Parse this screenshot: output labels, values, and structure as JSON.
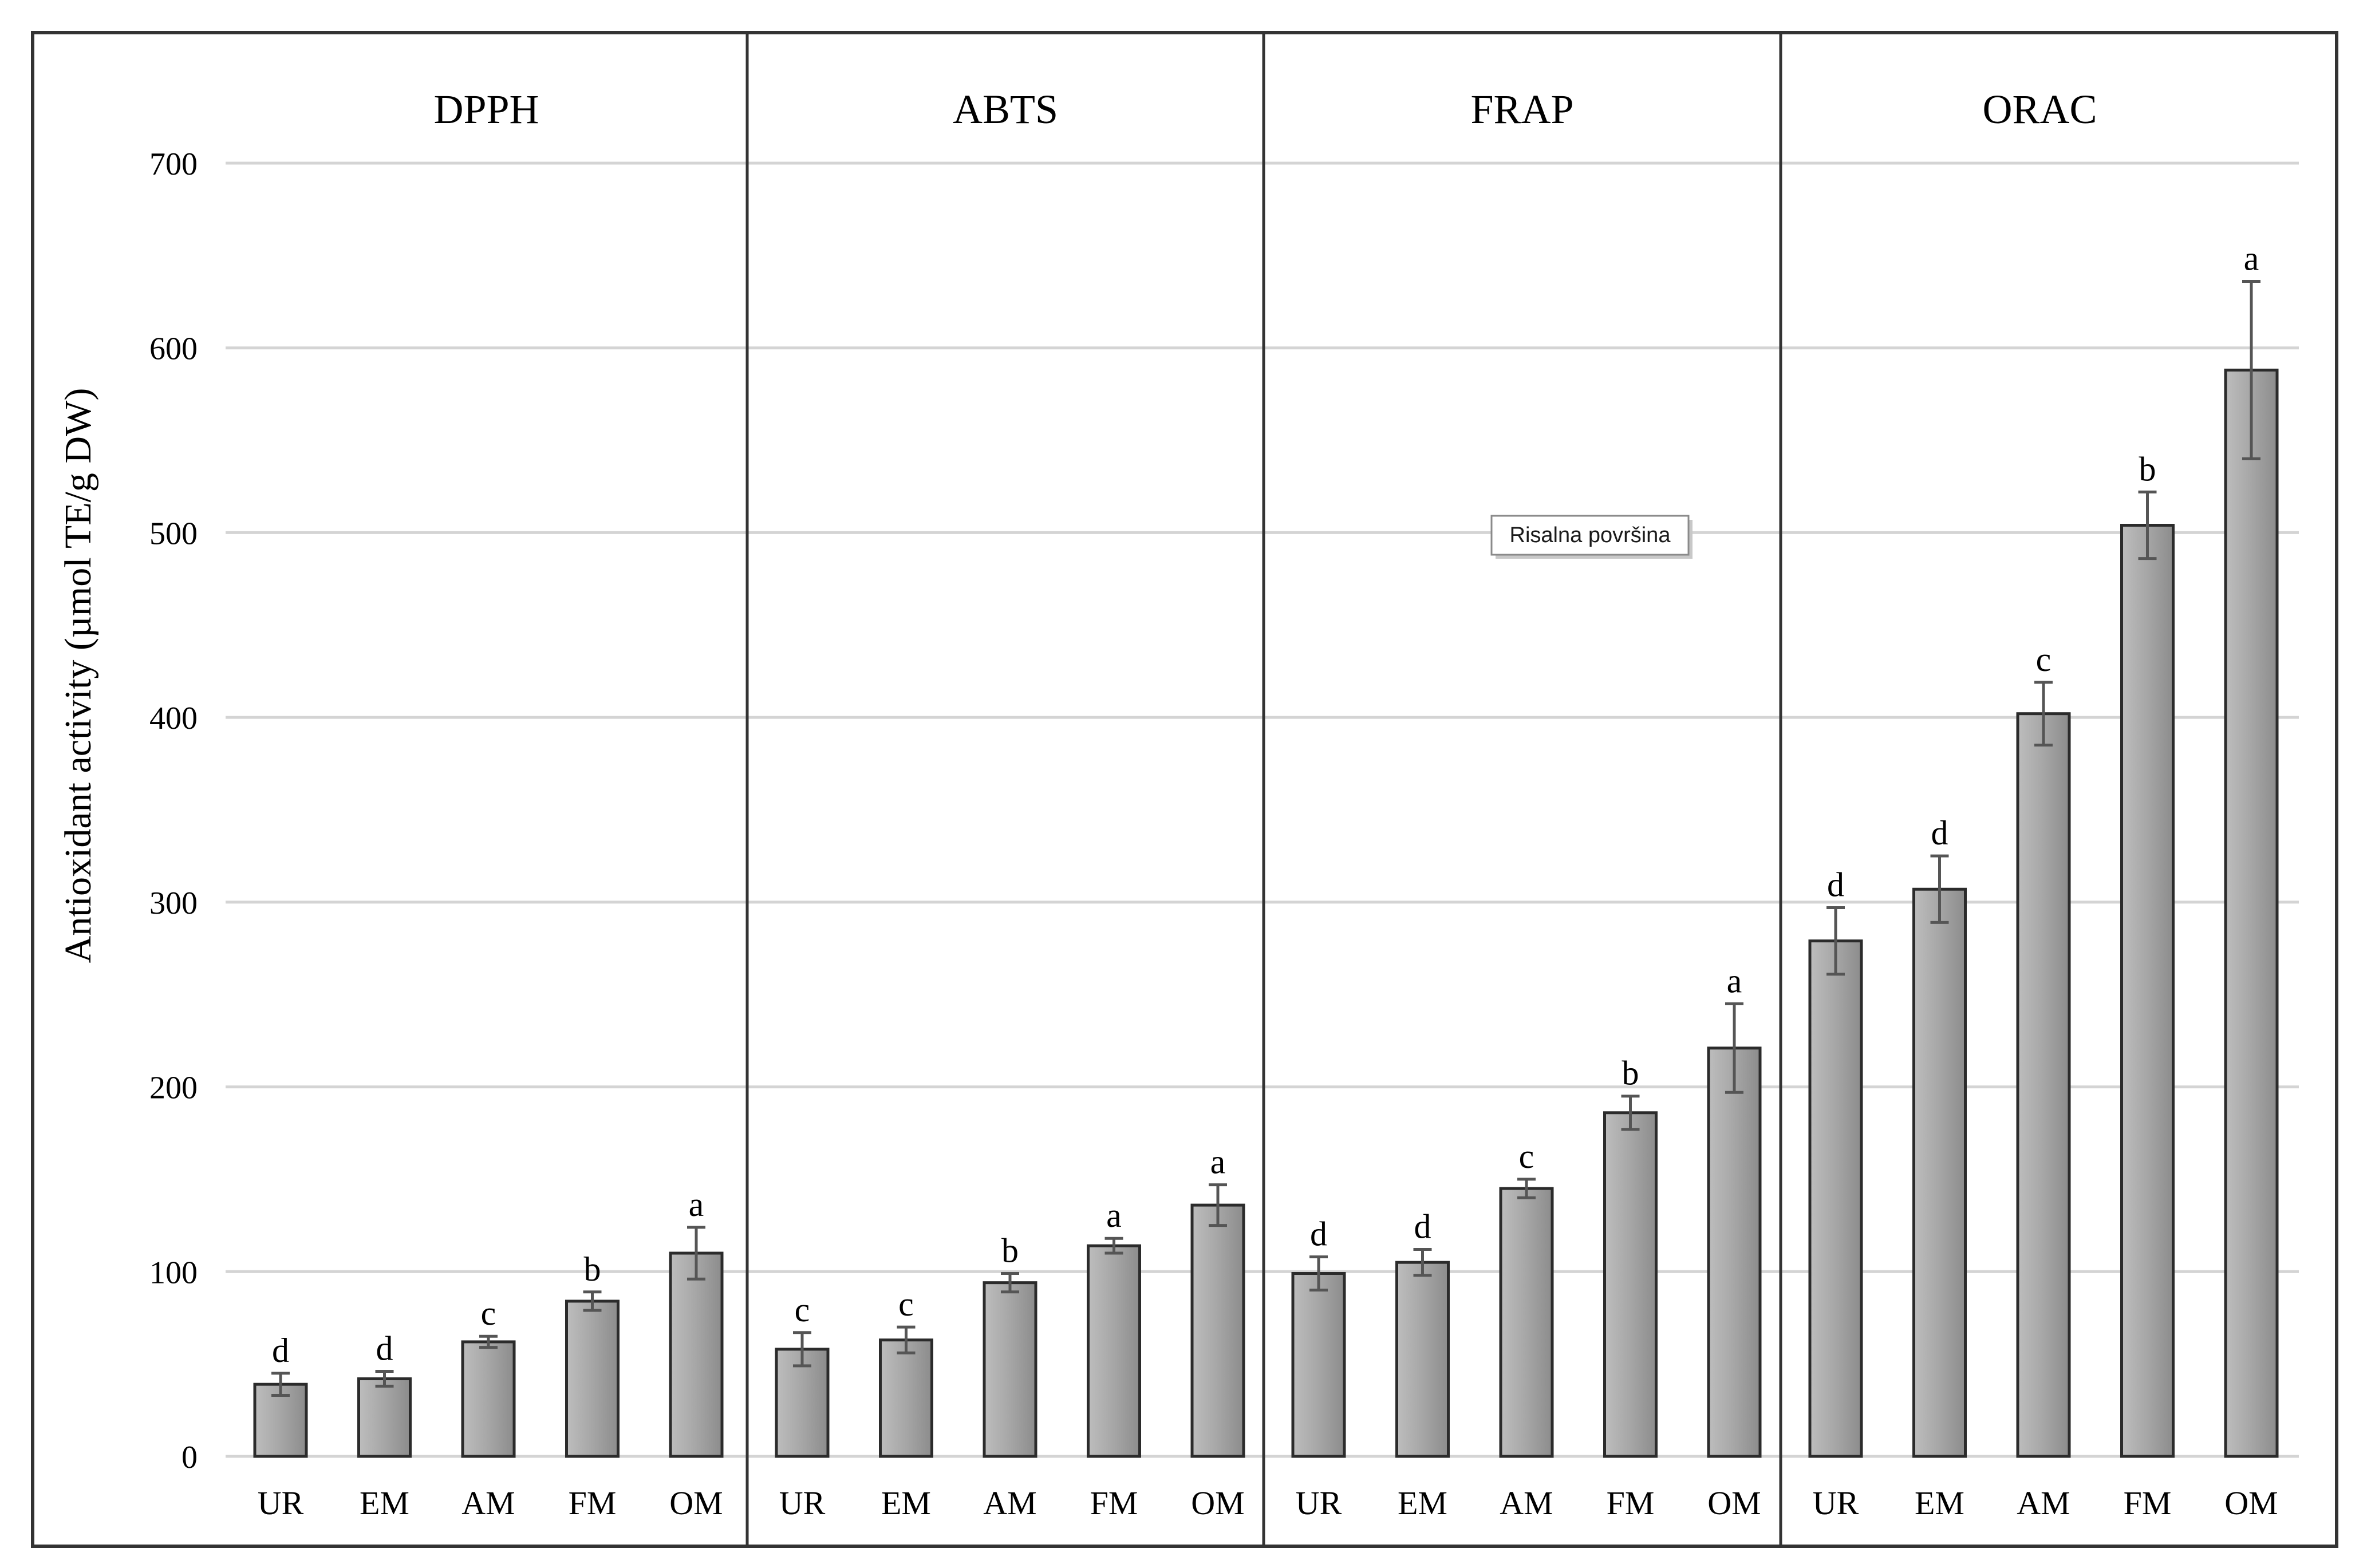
{
  "chart_data": {
    "type": "bar",
    "ylabel": "Antioxidant activity (µmol TE/g DW)",
    "ylim": [
      0,
      700
    ],
    "yticks": [
      0,
      100,
      200,
      300,
      400,
      500,
      600,
      700
    ],
    "grid": true,
    "categories": [
      "UR",
      "EM",
      "AM",
      "FM",
      "OM"
    ],
    "panels": [
      {
        "title": "DPPH",
        "values": [
          39,
          42,
          62,
          84,
          110
        ],
        "errors": [
          6,
          4,
          3,
          5,
          14
        ],
        "letters": [
          "d",
          "d",
          "c",
          "b",
          "a"
        ]
      },
      {
        "title": "ABTS",
        "values": [
          58,
          63,
          94,
          114,
          136
        ],
        "errors": [
          9,
          7,
          5,
          4,
          11
        ],
        "letters": [
          "c",
          "c",
          "b",
          "a",
          "a"
        ]
      },
      {
        "title": "FRAP",
        "values": [
          99,
          105,
          145,
          186,
          221
        ],
        "errors": [
          9,
          7,
          5,
          9,
          24
        ],
        "letters": [
          "d",
          "d",
          "c",
          "b",
          "a"
        ]
      },
      {
        "title": "ORAC",
        "values": [
          279,
          307,
          402,
          504,
          588
        ],
        "errors": [
          18,
          18,
          17,
          18,
          48
        ],
        "letters": [
          "d",
          "d",
          "c",
          "b",
          "a"
        ]
      }
    ],
    "colors": {
      "bar": "#999999",
      "bar_stroke": "#2b2b2b",
      "grid": "#d4d4d4",
      "frame": "#333333"
    }
  },
  "tooltip": {
    "label": "Risalna površina"
  }
}
